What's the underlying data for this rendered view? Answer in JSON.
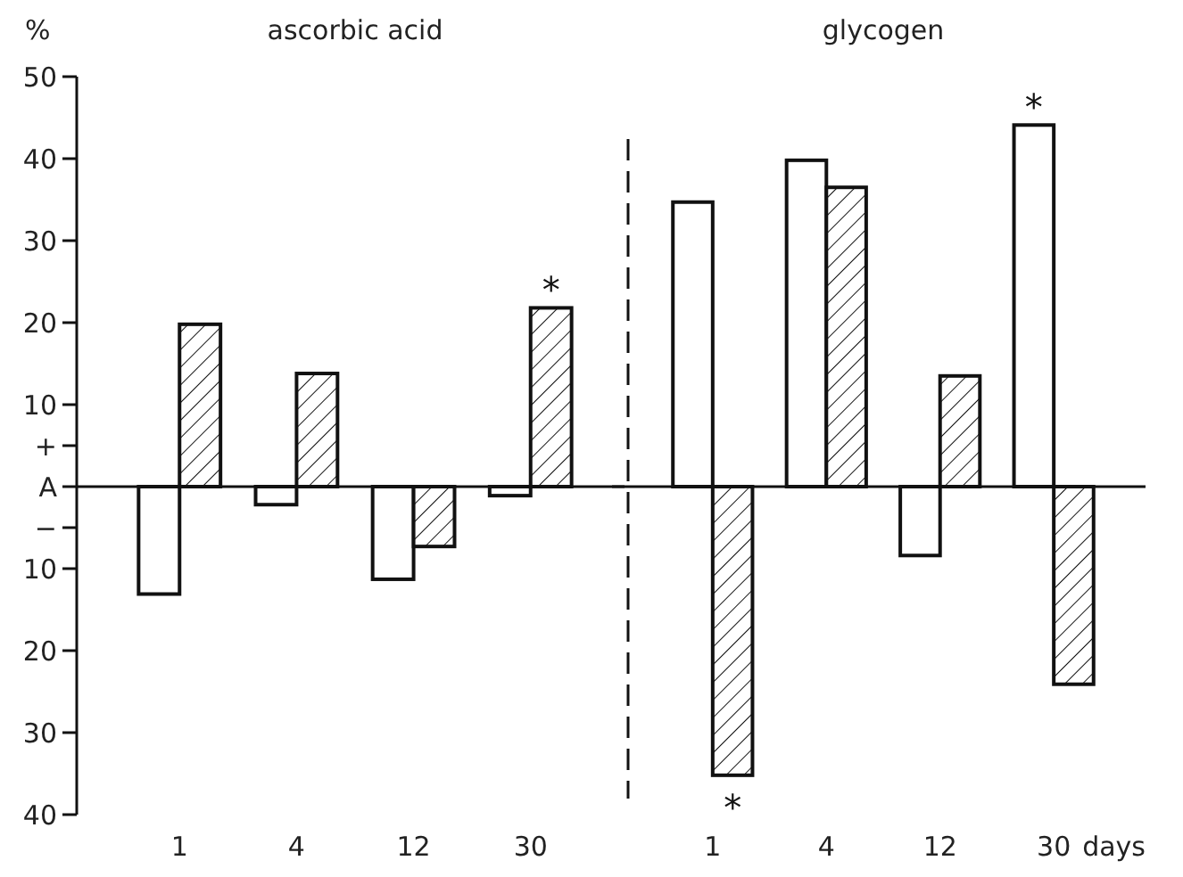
{
  "chart_data": [
    {
      "type": "bar",
      "title": "ascorbic acid",
      "ylabel": "%",
      "categories": [
        "1",
        "4",
        "12",
        "30"
      ],
      "series": [
        {
          "color": "#ffffff",
          "values": [
            -13.1,
            -2.2,
            -11.3,
            -1.1
          ]
        },
        {
          "color": "#111111",
          "values": [
            19.8,
            13.8,
            -7.3,
            21.8
          ]
        }
      ],
      "ylim": [
        -40,
        50
      ],
      "yticks": [
        {
          "value": -40,
          "label": "40"
        },
        {
          "value": -30,
          "label": "30"
        },
        {
          "value": -20,
          "label": "20"
        },
        {
          "value": -10,
          "label": "10"
        },
        {
          "value": -5,
          "label": "−"
        },
        {
          "value": 0,
          "label": "A"
        },
        {
          "value": 5,
          "label": "+"
        },
        10,
        20,
        30,
        40,
        50
      ],
      "annotations": [
        {
          "text": "*",
          "x": "30",
          "y": 21.8
        }
      ]
    },
    {
      "type": "bar",
      "title": "glycogen",
      "xlabel": "days",
      "categories": [
        "1",
        "4",
        "12",
        "30"
      ],
      "series": [
        {
          "color": "#ffffff",
          "values": [
            34.7,
            39.8,
            -8.4,
            44.1
          ]
        },
        {
          "color": "#111111",
          "values": [
            -35.2,
            36.5,
            13.5,
            -24.1
          ]
        }
      ],
      "ylim": [
        -40,
        50
      ],
      "tick_labels": "x",
      "annotations": [
        {
          "text": "*",
          "x": "1",
          "y": -35.2
        },
        {
          "text": "*",
          "x": "30",
          "y": 44.1
        }
      ]
    }
  ]
}
